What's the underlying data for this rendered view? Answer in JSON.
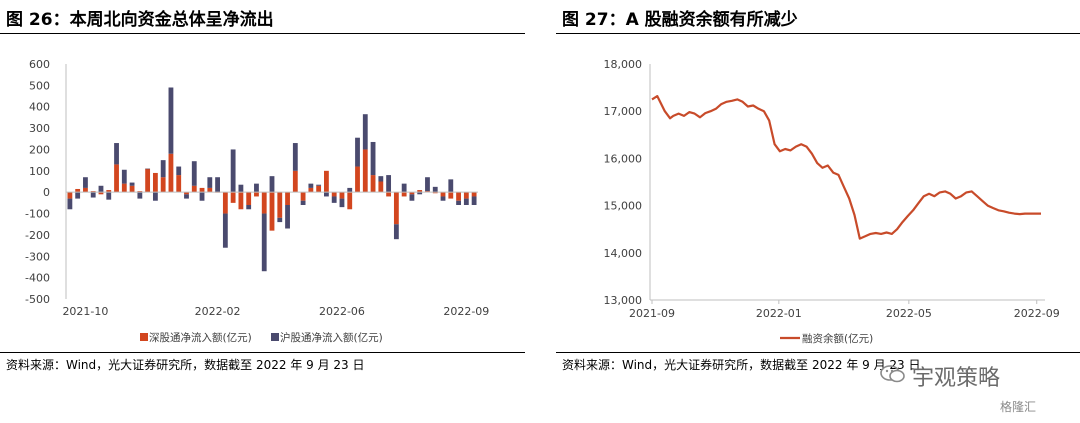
{
  "left": {
    "title": "图 26：本周北向资金总体呈净流出",
    "source": "资料来源：Wind，光大证券研究所，数据截至 2022 年 9 月 23 日"
  },
  "right": {
    "title": "图 27：A 股融资余额有所减少",
    "source": "资料来源：Wind，光大证券研究所，数据截至 2022 年 9 月 23 日"
  },
  "watermark": {
    "brand": "宇观策略",
    "platform": "格隆汇",
    "icon": "wechat-icon"
  },
  "colors": {
    "shenzhen": "#d2461f",
    "shanghai": "#4a4a6e",
    "margin_line": "#c84b2a",
    "axis": "#bfbfbf"
  },
  "chart_data": [
    {
      "type": "bar",
      "stacked": true,
      "x_tick_labels": [
        "2021-10",
        "2022-02",
        "2022-06",
        "2022-09"
      ],
      "x_tick_positions": [
        2,
        19,
        35,
        51
      ],
      "ylim": [
        -500,
        600
      ],
      "yticks": [
        -500,
        -400,
        -300,
        -200,
        -100,
        0,
        100,
        200,
        300,
        400,
        500,
        600
      ],
      "legend_position": "bottom",
      "series": [
        {
          "name": "深股通净流入额(亿元)",
          "values": [
            -30,
            15,
            20,
            5,
            -10,
            10,
            130,
            40,
            30,
            5,
            110,
            90,
            70,
            180,
            80,
            -10,
            30,
            20,
            20,
            0,
            -100,
            -50,
            -80,
            -60,
            -20,
            -100,
            -180,
            -120,
            -60,
            100,
            -40,
            20,
            30,
            100,
            -20,
            -30,
            -80,
            120,
            200,
            80,
            50,
            -20,
            -150,
            -20,
            -10,
            10,
            5,
            -5,
            -20,
            -30,
            -40,
            -30,
            -20
          ]
        },
        {
          "name": "沪股通净流入额(亿元)",
          "values": [
            -50,
            -30,
            50,
            -25,
            30,
            -35,
            100,
            65,
            15,
            -30,
            0,
            -40,
            80,
            310,
            40,
            -20,
            115,
            -40,
            50,
            70,
            -160,
            200,
            35,
            -20,
            40,
            -270,
            75,
            -20,
            -110,
            130,
            -20,
            20,
            5,
            -20,
            -30,
            -40,
            20,
            135,
            165,
            155,
            25,
            80,
            -70,
            40,
            -30,
            -10,
            65,
            25,
            -20,
            60,
            -20,
            -30,
            -40
          ]
        }
      ]
    },
    {
      "type": "line",
      "x_tick_labels": [
        "2021-09",
        "2022-01",
        "2022-05",
        "2022-09"
      ],
      "x_tick_positions": [
        0,
        119,
        241,
        361
      ],
      "ylim": [
        13000,
        18000
      ],
      "yticks": [
        13000,
        14000,
        15000,
        16000,
        17000,
        18000
      ],
      "ytick_labels": [
        "13,000",
        "14,000",
        "15,000",
        "16,000",
        "17,000",
        "18,000"
      ],
      "legend_position": "bottom",
      "series": [
        {
          "name": "融资余额(亿元)",
          "x": [
            0,
            5,
            12,
            17,
            20,
            25,
            30,
            35,
            40,
            45,
            50,
            55,
            60,
            65,
            70,
            75,
            80,
            85,
            90,
            95,
            100,
            105,
            110,
            115,
            120,
            125,
            130,
            135,
            140,
            145,
            150,
            155,
            160,
            165,
            170,
            175,
            180,
            185,
            190,
            195,
            200,
            205,
            210,
            215,
            220,
            225,
            230,
            235,
            240,
            245,
            250,
            255,
            260,
            265,
            270,
            275,
            280,
            285,
            290,
            295,
            300,
            305,
            310,
            315,
            320,
            325,
            330,
            335,
            340,
            345,
            350,
            355,
            360,
            365
          ],
          "values": [
            17250,
            17320,
            17000,
            16850,
            16900,
            16950,
            16900,
            16980,
            16950,
            16870,
            16960,
            17000,
            17050,
            17150,
            17200,
            17220,
            17250,
            17200,
            17100,
            17120,
            17050,
            17000,
            16800,
            16300,
            16150,
            16200,
            16170,
            16250,
            16300,
            16250,
            16100,
            15900,
            15800,
            15850,
            15700,
            15650,
            15400,
            15150,
            14800,
            14300,
            14350,
            14400,
            14420,
            14400,
            14430,
            14400,
            14500,
            14650,
            14780,
            14900,
            15050,
            15200,
            15250,
            15200,
            15280,
            15300,
            15250,
            15150,
            15200,
            15280,
            15300,
            15200,
            15100,
            15000,
            14950,
            14900,
            14880,
            14850,
            14830,
            14820,
            14830,
            14830,
            14830,
            14830
          ]
        }
      ]
    }
  ]
}
